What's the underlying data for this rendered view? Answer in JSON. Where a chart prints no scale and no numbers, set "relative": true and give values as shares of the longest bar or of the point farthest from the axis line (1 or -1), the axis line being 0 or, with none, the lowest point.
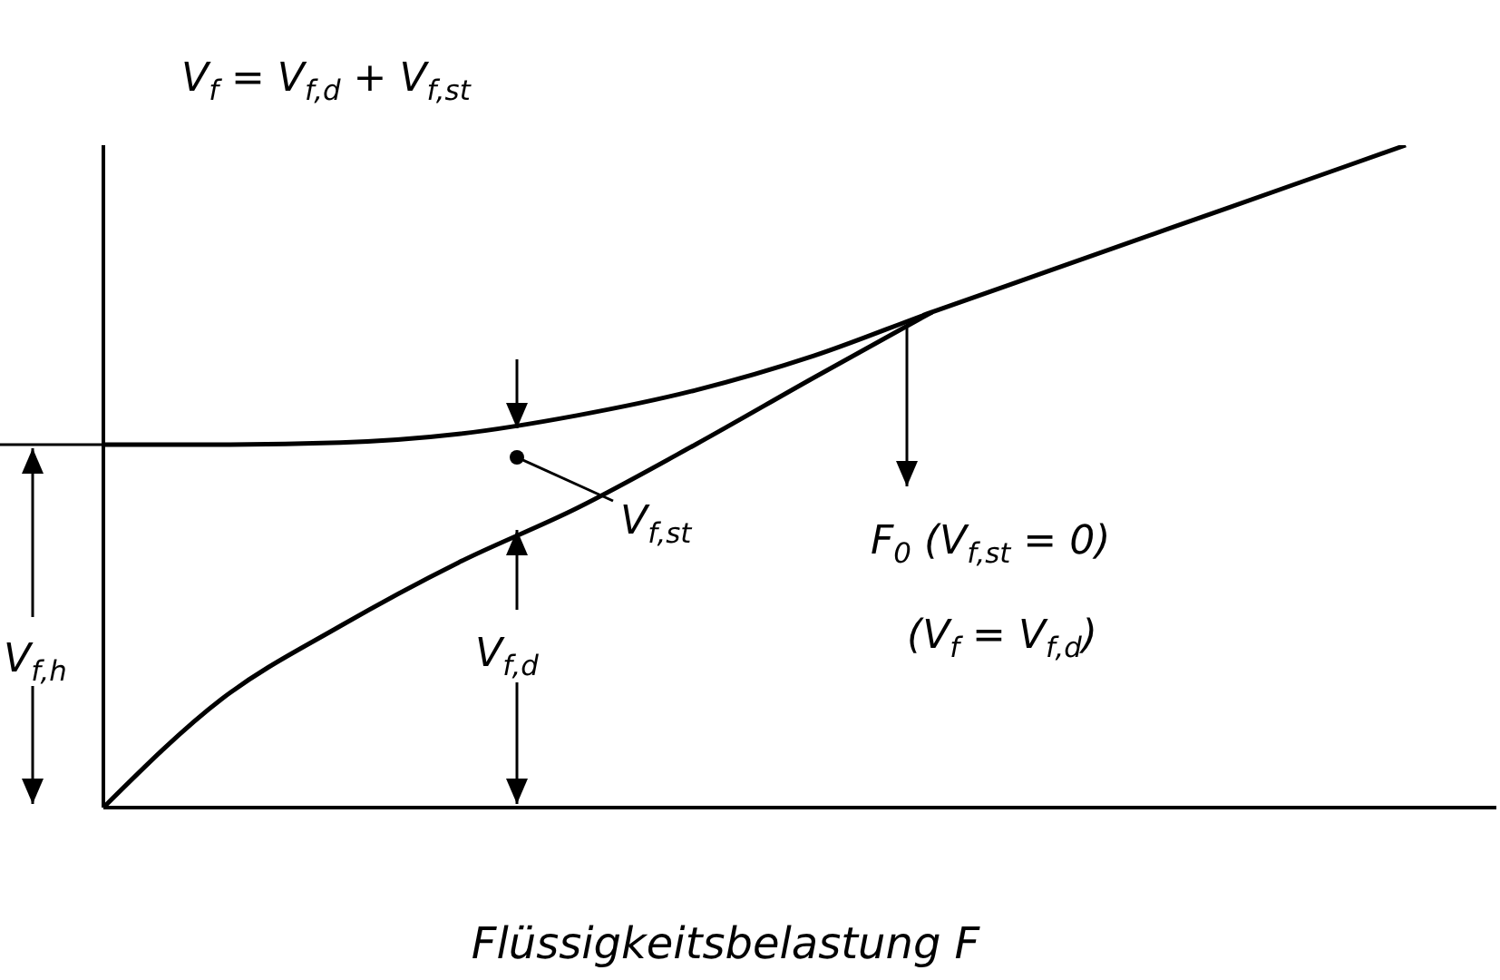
{
  "chart_data": {
    "type": "line",
    "relative": true,
    "xlabel": "Flüssigkeitsbelastung F",
    "marker": "none",
    "line_style": "solid",
    "categories": [
      null,
      null,
      null,
      null,
      null,
      null,
      null,
      null,
      null,
      null,
      null,
      null
    ],
    "series": [
      {
        "color": "#000000",
        "values": [
          0.548,
          0.548,
          0.551,
          0.564,
          0.592,
          0.63,
          0.682,
          0.748,
          0.811,
          0.874,
          0.937,
          1
        ]
      },
      {
        "color": "#000000",
        "values": [
          0,
          0.164,
          0.274,
          0.37,
          0.452,
          0.548,
          0.649,
          0.748,
          null,
          null,
          null,
          null
        ]
      }
    ],
    "annotations": [
      "V$_{f}$ = V$_{f,d}$ + V$_{f,st}$",
      "V$_{f,st}$",
      "F$_{0}$ (V$_{f,st}$ = 0)",
      "(V$_{f}$ = V$_{f,d}$)",
      "V$_{f,h}$",
      "V$_{f,d}$"
    ]
  }
}
